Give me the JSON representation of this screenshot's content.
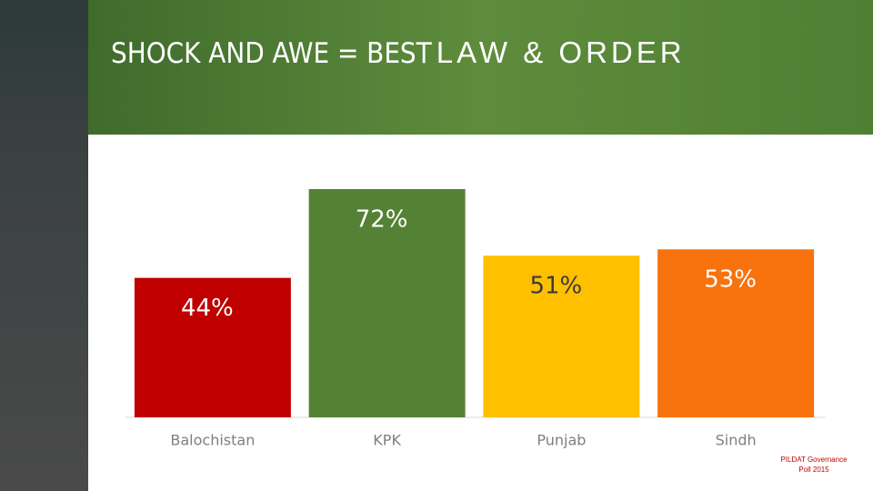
{
  "chart_data": {
    "type": "bar",
    "title": [
      "SHOCK AND AWE = BEST",
      "LAW & ORDER"
    ],
    "categories": [
      "Balochistan",
      "KPK",
      "Punjab",
      "Sindh"
    ],
    "values": [
      44,
      72,
      51,
      53
    ],
    "value_labels": [
      "44%",
      "72%",
      "51%",
      "53%"
    ],
    "colors": [
      "#c00000",
      "#548235",
      "#ffc000",
      "#f8720e"
    ],
    "source": [
      "PILDAT Governance",
      "Poll 2015"
    ]
  }
}
